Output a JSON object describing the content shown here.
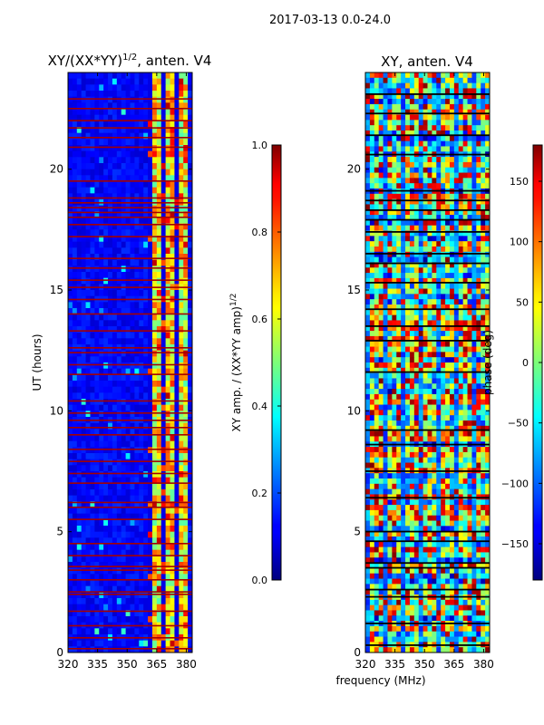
{
  "figure_title": "2017-03-13 0.0-24.0",
  "xlabel_shared": "frequency (MHz)",
  "chart_data": [
    {
      "type": "heatmap",
      "title": "XY/(XX*YY)",
      "title_superscript": "1/2",
      "title_suffix": ", anten. V4",
      "xlabel": "",
      "ylabel": "UT (hours)",
      "xlim": [
        320,
        383
      ],
      "ylim": [
        0,
        24
      ],
      "xticks": [
        320,
        335,
        350,
        365,
        380
      ],
      "yticks": [
        0,
        5,
        10,
        15,
        20
      ],
      "colormap": "jet",
      "colorbar": {
        "label": "XY amp. / (XX*YY amp)",
        "label_superscript": "1/2",
        "range": [
          0.0,
          1.0
        ],
        "ticks": [
          "0.0",
          "0.2",
          "0.4",
          "0.6",
          "0.8",
          "1.0"
        ],
        "tick_values": [
          0.0,
          0.2,
          0.4,
          0.6,
          0.8,
          1.0
        ]
      },
      "active_band_mhz": [
        360,
        380
      ],
      "flagged_hours": [
        0.15,
        0.6,
        1.1,
        1.7,
        2.4,
        2.5,
        3.0,
        3.4,
        3.55,
        4.0,
        4.5,
        5.5,
        6.0,
        6.2,
        7.0,
        7.4,
        7.9,
        8.4,
        9.0,
        9.3,
        9.6,
        9.9,
        10.4,
        11.5,
        11.9,
        12.4,
        12.6,
        13.3,
        14.0,
        14.6,
        15.1,
        15.4,
        15.9,
        16.3,
        17.2,
        17.7,
        18.0,
        18.2,
        18.4,
        18.6,
        18.8,
        19.5,
        20.9,
        21.3,
        21.7,
        22.0,
        22.5,
        22.9
      ]
    },
    {
      "type": "heatmap",
      "title": "XY, anten. V4",
      "xlabel": "frequency (MHz)",
      "ylabel": "",
      "xlim": [
        320,
        383
      ],
      "ylim": [
        0,
        24
      ],
      "xticks": [
        320,
        335,
        350,
        365,
        380
      ],
      "yticks": [
        0,
        5,
        10,
        15,
        20
      ],
      "colormap": "jet",
      "colorbar": {
        "label": "phase (deg)",
        "range": [
          -180,
          180
        ],
        "ticks": [
          "−150",
          "−100",
          "−50",
          "0",
          "50",
          "100",
          "150"
        ],
        "tick_values": [
          -150,
          -100,
          -50,
          0,
          50,
          100,
          150
        ]
      },
      "flagged_hours": [
        0.3,
        1.2,
        2.3,
        2.6,
        3.5,
        3.7,
        4.6,
        5.0,
        6.4,
        7.5,
        8.6,
        9.2,
        11.6,
        12.9,
        13.5,
        14.2,
        15.3,
        16.1,
        16.5,
        17.4,
        17.9,
        18.3,
        18.7,
        19.1,
        20.6,
        21.4,
        22.3,
        23.1
      ]
    }
  ]
}
